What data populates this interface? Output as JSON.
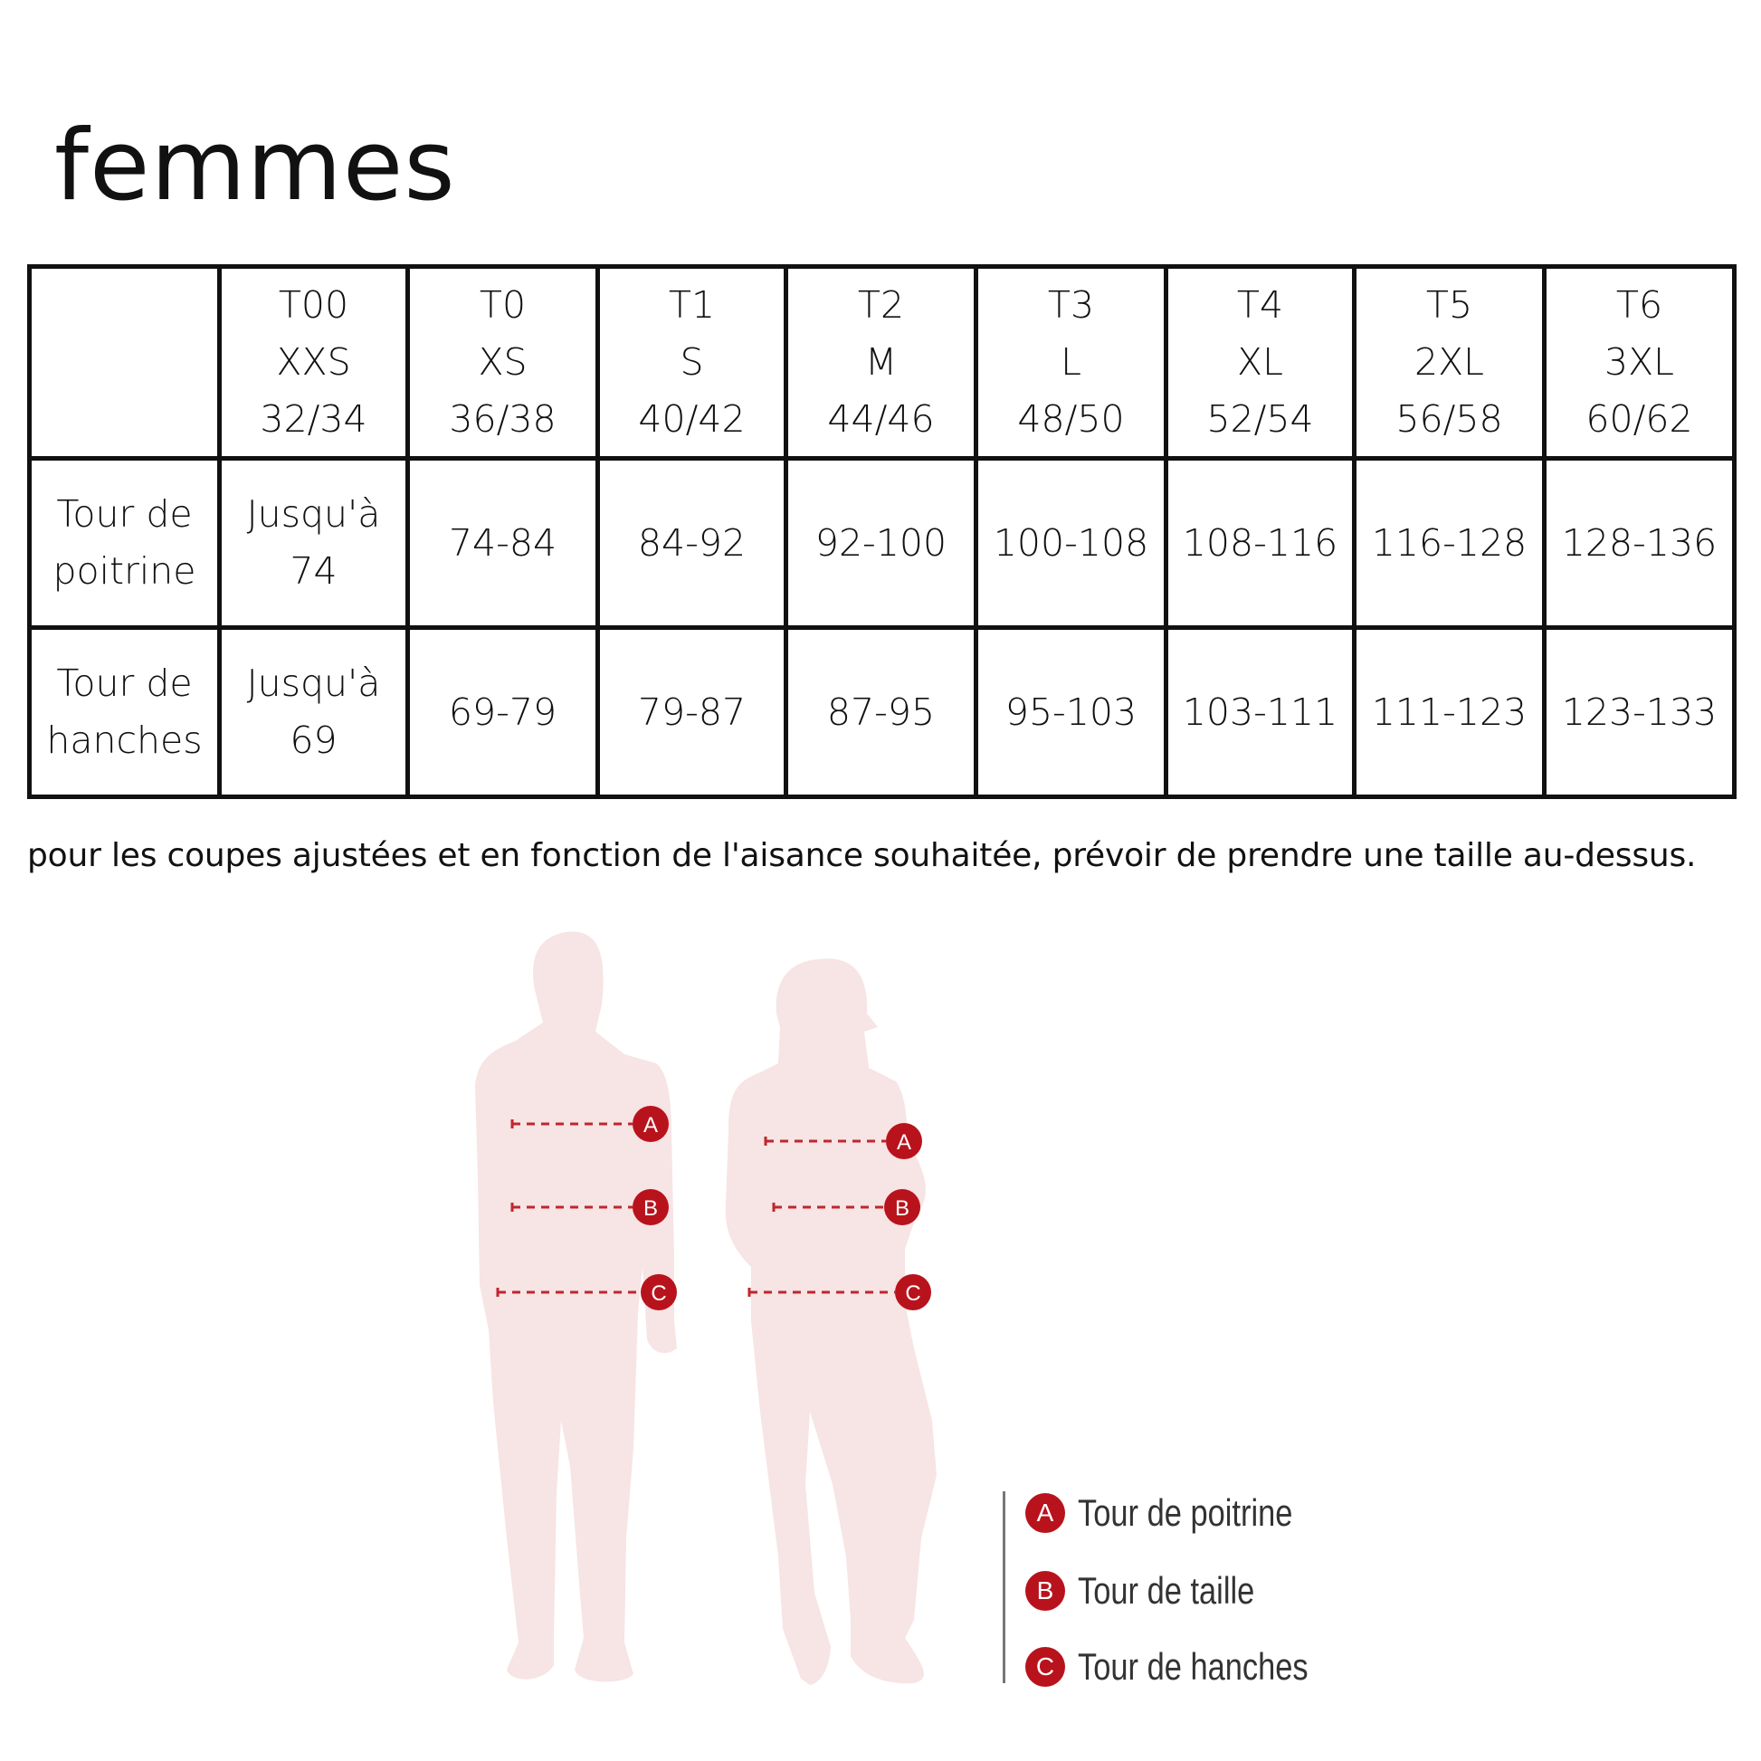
{
  "title": "femmes",
  "table": {
    "sizes": [
      {
        "t": "T00",
        "letter": "XXS",
        "eu": "32/34"
      },
      {
        "t": "T0",
        "letter": "XS",
        "eu": "36/38"
      },
      {
        "t": "T1",
        "letter": "S",
        "eu": "40/42"
      },
      {
        "t": "T2",
        "letter": "M",
        "eu": "44/46"
      },
      {
        "t": "T3",
        "letter": "L",
        "eu": "48/50"
      },
      {
        "t": "T4",
        "letter": "XL",
        "eu": "52/54"
      },
      {
        "t": "T5",
        "letter": "2XL",
        "eu": "56/58"
      },
      {
        "t": "T6",
        "letter": "3XL",
        "eu": "60/62"
      }
    ],
    "rows": [
      {
        "label_1": "Tour de",
        "label_2": "poitrine",
        "first_1": "Jusqu'à",
        "first_2": "74",
        "values": [
          "74-84",
          "84-92",
          "92-100",
          "100-108",
          "108-116",
          "116-128",
          "128-136"
        ]
      },
      {
        "label_1": "Tour de",
        "label_2": "hanches",
        "first_1": "Jusqu'à",
        "first_2": "69",
        "values": [
          "69-79",
          "79-87",
          "87-95",
          "95-103",
          "103-111",
          "111-123",
          "123-133"
        ]
      }
    ]
  },
  "note": "pour les coupes ajustées et en fonction de l'aisance souhaitée, prévoir de prendre une taille au-dessus.",
  "markers": [
    "A",
    "B",
    "C"
  ],
  "legend": [
    {
      "key": "A",
      "label": "Tour de poitrine"
    },
    {
      "key": "B",
      "label": "Tour de taille"
    },
    {
      "key": "C",
      "label": "Tour de hanches"
    }
  ],
  "colors": {
    "silhouette": "#f7e4e4",
    "accent": "#b8131c"
  }
}
